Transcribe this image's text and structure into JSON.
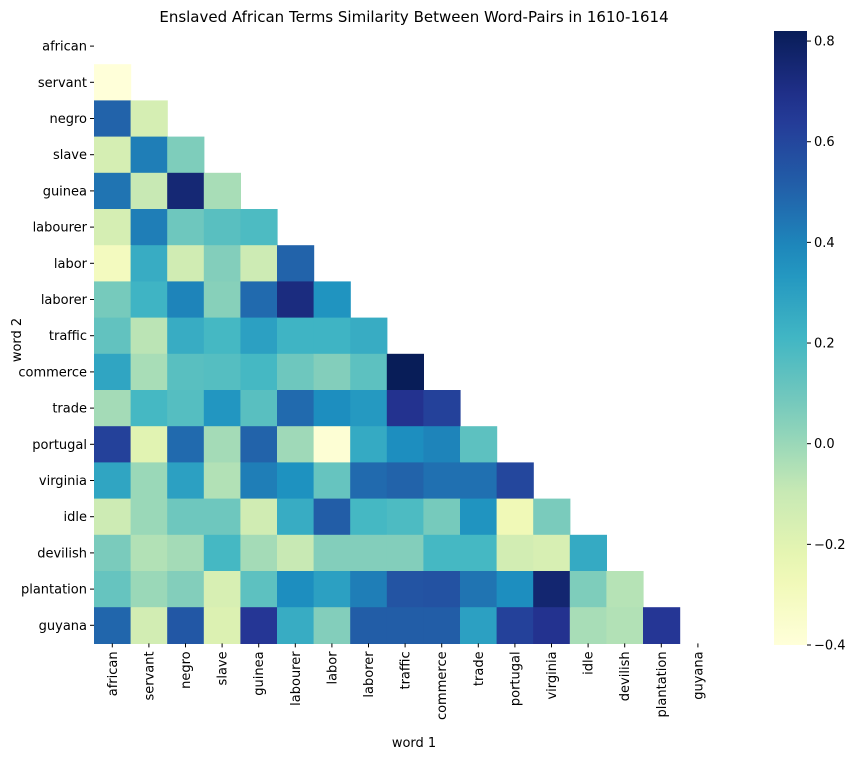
{
  "chart_data": {
    "type": "heatmap",
    "title": "Enslaved African Terms Similarity Between Word-Pairs in 1610-1614",
    "xlabel": "word 1",
    "ylabel": "word 2",
    "categories": [
      "african",
      "servant",
      "negro",
      "slave",
      "guinea",
      "labourer",
      "labor",
      "laborer",
      "traffic",
      "commerce",
      "trade",
      "portugal",
      "virginia",
      "idle",
      "devilish",
      "plantation",
      "guyana"
    ],
    "mask": "upper-triangle-including-diagonal",
    "colormap": "YlGnBu",
    "vmin": -0.4,
    "vmax": 0.82,
    "colorbar_ticks": [
      -0.4,
      -0.2,
      0.0,
      0.2,
      0.4,
      0.6,
      0.8
    ],
    "colorbar_tick_labels": [
      "−0.4",
      "−0.2",
      "0.0",
      "0.2",
      "0.4",
      "0.6",
      "0.8"
    ],
    "matrix": [
      [],
      [
        -0.4
      ],
      [
        0.5,
        -0.15
      ],
      [
        -0.15,
        0.42,
        0.06
      ],
      [
        0.45,
        -0.1,
        0.75,
        -0.03
      ],
      [
        -0.15,
        0.42,
        0.1,
        0.15,
        0.18
      ],
      [
        -0.3,
        0.25,
        -0.13,
        0.05,
        -0.12,
        0.5
      ],
      [
        0.08,
        0.22,
        0.4,
        0.04,
        0.48,
        0.72,
        0.35
      ],
      [
        0.13,
        -0.07,
        0.25,
        0.2,
        0.3,
        0.22,
        0.22,
        0.25
      ],
      [
        0.28,
        -0.03,
        0.15,
        0.16,
        0.2,
        0.1,
        0.05,
        0.14,
        0.82
      ],
      [
        -0.02,
        0.2,
        0.16,
        0.34,
        0.15,
        0.48,
        0.37,
        0.33,
        0.68,
        0.62
      ],
      [
        0.62,
        -0.2,
        0.48,
        -0.02,
        0.5,
        -0.01,
        -0.38,
        0.26,
        0.37,
        0.4,
        0.14
      ],
      [
        0.28,
        0.0,
        0.3,
        -0.05,
        0.42,
        0.36,
        0.12,
        0.48,
        0.5,
        0.46,
        0.46,
        0.6
      ],
      [
        -0.12,
        0.0,
        0.1,
        0.1,
        -0.13,
        0.25,
        0.52,
        0.2,
        0.18,
        0.08,
        0.35,
        -0.27,
        0.07
      ],
      [
        0.07,
        -0.05,
        -0.02,
        0.2,
        -0.02,
        -0.1,
        0.05,
        0.05,
        0.05,
        0.2,
        0.2,
        -0.14,
        -0.16,
        0.26
      ],
      [
        0.12,
        0.0,
        0.05,
        -0.16,
        0.14,
        0.37,
        0.3,
        0.42,
        0.55,
        0.56,
        0.45,
        0.37,
        0.76,
        0.06,
        -0.06
      ],
      [
        0.49,
        -0.14,
        0.54,
        -0.18,
        0.66,
        0.25,
        0.05,
        0.52,
        0.52,
        0.52,
        0.3,
        0.62,
        0.68,
        -0.03,
        -0.05,
        0.66
      ]
    ]
  }
}
